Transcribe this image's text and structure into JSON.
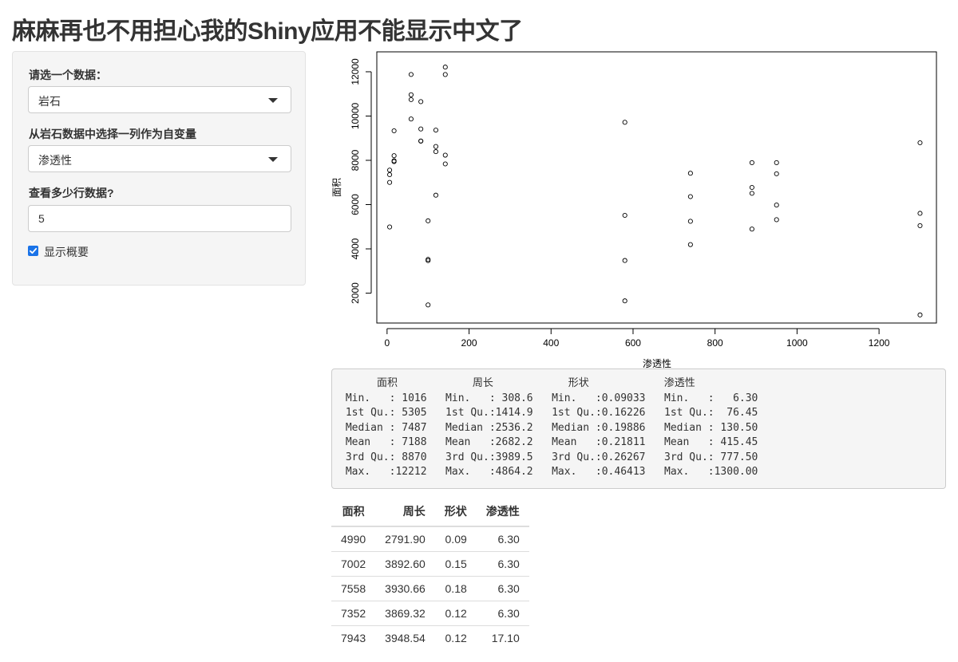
{
  "page": {
    "title": "麻麻再也不用担心我的Shiny应用不能显示中文了"
  },
  "sidebar": {
    "dataset_label": "请选一个数据：",
    "dataset_value": "岩石",
    "variable_label": "从岩石数据中选择一列作为自变量",
    "variable_value": "渗透性",
    "rows_label": "查看多少行数据?",
    "rows_value": "5",
    "summary_checkbox_label": "显示概要",
    "summary_checked": true
  },
  "icons": {
    "select_caret": "chevron-down-icon",
    "checkbox_check": "checkmark-icon"
  },
  "colors": {
    "checkbox_accent": "#1a73e8"
  },
  "chart_data": {
    "type": "scatter",
    "title": "",
    "xlabel": "渗透性",
    "ylabel": "面积",
    "xlim": [
      -25,
      1340
    ],
    "ylim": [
      650,
      12900
    ],
    "xticks": [
      0,
      200,
      400,
      600,
      800,
      1000,
      1200
    ],
    "yticks": [
      2000,
      4000,
      6000,
      8000,
      10000,
      12000
    ],
    "points": [
      [
        6.3,
        4990
      ],
      [
        6.3,
        7002
      ],
      [
        6.3,
        7558
      ],
      [
        6.3,
        7352
      ],
      [
        17.1,
        7943
      ],
      [
        17.1,
        7979
      ],
      [
        17.1,
        9333
      ],
      [
        17.1,
        8209
      ],
      [
        119,
        8393
      ],
      [
        119,
        6425
      ],
      [
        119,
        9364
      ],
      [
        119,
        8624
      ],
      [
        82.4,
        10651
      ],
      [
        82.4,
        8868
      ],
      [
        82.4,
        9417
      ],
      [
        82.4,
        8874
      ],
      [
        58.6,
        10962
      ],
      [
        58.6,
        10743
      ],
      [
        58.6,
        11878
      ],
      [
        58.6,
        9867
      ],
      [
        142,
        7838
      ],
      [
        142,
        11876
      ],
      [
        142,
        12212
      ],
      [
        142,
        8233
      ],
      [
        740,
        6360
      ],
      [
        740,
        4193
      ],
      [
        740,
        7416
      ],
      [
        740,
        5246
      ],
      [
        890,
        6509
      ],
      [
        890,
        4895
      ],
      [
        890,
        6775
      ],
      [
        890,
        7894
      ],
      [
        950,
        5980
      ],
      [
        950,
        5318
      ],
      [
        950,
        7392
      ],
      [
        950,
        7894
      ],
      [
        100,
        3469
      ],
      [
        100,
        1468
      ],
      [
        100,
        3524
      ],
      [
        100,
        5267
      ],
      [
        1300,
        5048
      ],
      [
        1300,
        1016
      ],
      [
        1300,
        5605
      ],
      [
        1300,
        8793
      ],
      [
        580,
        3475
      ],
      [
        580,
        1651
      ],
      [
        580,
        5514
      ],
      [
        580,
        9718
      ]
    ]
  },
  "summary": {
    "lines": [
      "      面积            周长            形状            渗透性      ",
      " Min.   : 1016   Min.   : 308.6   Min.   :0.09033   Min.   :   6.30  ",
      " 1st Qu.: 5305   1st Qu.:1414.9   1st Qu.:0.16226   1st Qu.:  76.45  ",
      " Median : 7487   Median :2536.2   Median :0.19886   Median : 130.50  ",
      " Mean   : 7188   Mean   :2682.2   Mean   :0.21811   Mean   : 415.45  ",
      " 3rd Qu.: 8870   3rd Qu.:3989.5   3rd Qu.:0.26267   3rd Qu.: 777.50  ",
      " Max.   :12212   Max.   :4864.2   Max.   :0.46413   Max.   :1300.00  "
    ]
  },
  "table": {
    "headers": [
      "面积",
      "周长",
      "形状",
      "渗透性"
    ],
    "rows": [
      [
        "4990",
        "2791.90",
        "0.09",
        "6.30"
      ],
      [
        "7002",
        "3892.60",
        "0.15",
        "6.30"
      ],
      [
        "7558",
        "3930.66",
        "0.18",
        "6.30"
      ],
      [
        "7352",
        "3869.32",
        "0.12",
        "6.30"
      ],
      [
        "7943",
        "3948.54",
        "0.12",
        "17.10"
      ]
    ]
  }
}
